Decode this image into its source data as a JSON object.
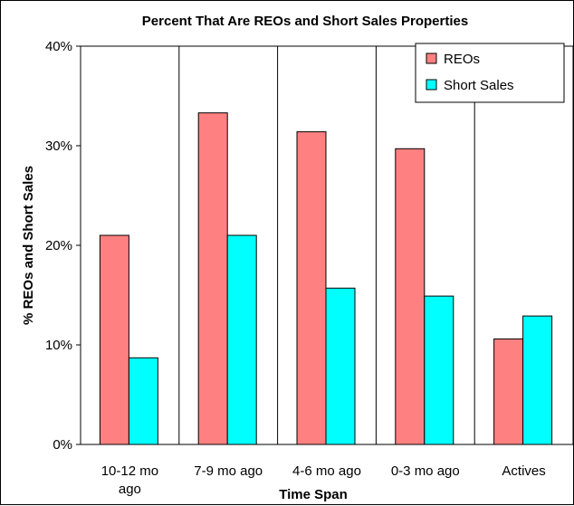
{
  "chart_data": {
    "type": "bar",
    "title": "Percent That Are REOs and Short Sales Properties",
    "xlabel": "Time Span",
    "ylabel": "% REOs and Short Sales",
    "categories": [
      "10-12 mo ago",
      "7-9 mo ago",
      "4-6 mo ago",
      "0-3 mo ago",
      "Actives"
    ],
    "category_lines": [
      [
        "10-12 mo",
        "ago"
      ],
      [
        "7-9 mo ago"
      ],
      [
        "4-6 mo ago"
      ],
      [
        "0-3 mo ago"
      ],
      [
        "Actives"
      ]
    ],
    "series": [
      {
        "name": "REOs",
        "values": [
          21.0,
          33.3,
          31.4,
          29.7,
          10.6
        ],
        "color": "#ff8080"
      },
      {
        "name": "Short Sales",
        "values": [
          8.7,
          21.0,
          15.7,
          14.9,
          12.9
        ],
        "color": "#00ffff"
      }
    ],
    "ylim": [
      0,
      40
    ],
    "yticks": [
      0,
      10,
      20,
      30,
      40
    ],
    "ytick_labels": [
      "0%",
      "10%",
      "20%",
      "30%",
      "40%"
    ],
    "grid": "vertical category dividers",
    "legend_position": "top-right"
  }
}
